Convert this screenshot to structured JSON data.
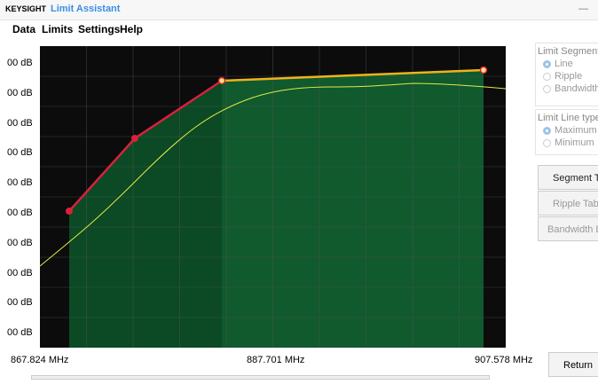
{
  "title_bar": {
    "brand": "KEYSIGHT",
    "app": "Limit Assistant",
    "minimize": "—"
  },
  "menu": [
    "Data",
    "Limits",
    "Settings",
    "Help"
  ],
  "plot": {
    "y_labels": [
      "00 dB",
      "00 dB",
      "00 dB",
      "00 dB",
      "00 dB",
      "00 dB",
      "00 dB",
      "00 dB",
      "00 dB",
      "00 dB"
    ],
    "x_labels": [
      "867.824 MHz",
      "887.701 MHz",
      "907.578 MHz"
    ]
  },
  "side_panel": {
    "segment_group": "Limit Segment",
    "segment_options": [
      "Line",
      "Ripple",
      "Bandwidth"
    ],
    "type_group": "Limit Line type",
    "type_options": [
      "Maximum",
      "Minimum"
    ],
    "buttons": [
      "Segment Ta",
      "Ripple Tabl",
      "Bandwidth D"
    ]
  },
  "return_button": "Return"
}
